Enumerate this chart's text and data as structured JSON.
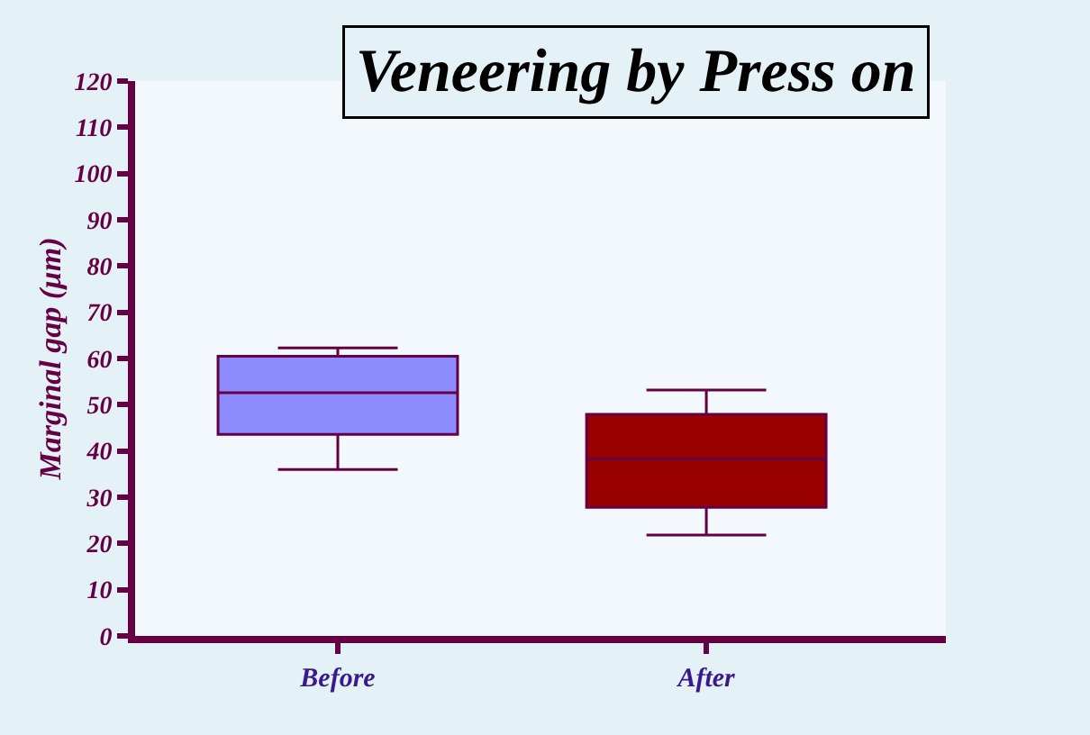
{
  "chart_data": {
    "type": "box",
    "title": "Veneering by Press on",
    "ylabel": "Marginal gap (µm)",
    "categories": [
      "Before",
      "After"
    ],
    "colors": [
      "#8c8cff",
      "#990000"
    ],
    "boxes": [
      {
        "low": 36,
        "q1": 43.6,
        "median": 52.6,
        "q3": 60.5,
        "high": 62.3
      },
      {
        "low": 21.8,
        "q1": 27.8,
        "median": 38.3,
        "q3": 47.9,
        "high": 53.2
      }
    ],
    "ylim": [
      0,
      120
    ],
    "yticks": [
      0,
      10,
      20,
      30,
      40,
      50,
      60,
      70,
      80,
      90,
      100,
      110,
      120
    ],
    "grid": false
  }
}
